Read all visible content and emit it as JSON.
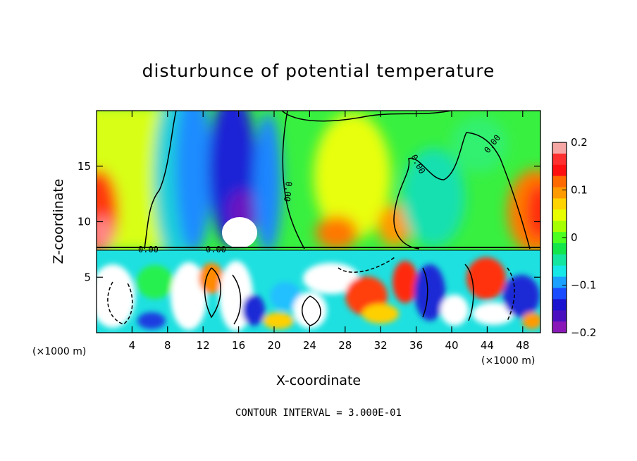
{
  "chart_data": {
    "type": "heatmap",
    "title": "disturbunce of potential temperature",
    "xlabel": "X-coordinate",
    "ylabel": "Z-coordinate",
    "x_unit": "(×1000 m)",
    "y_unit": "(×1000 m)",
    "xlim": [
      0,
      50
    ],
    "ylim": [
      0,
      20
    ],
    "x_ticks": [
      4,
      8,
      12,
      16,
      20,
      24,
      28,
      32,
      36,
      40,
      44,
      48
    ],
    "y_ticks": [
      5,
      10,
      15
    ],
    "colorbar": {
      "range": [
        -0.2,
        0.2
      ],
      "tick_values": [
        0.2,
        0.1,
        0,
        -0.1,
        -0.2
      ],
      "tick_labels": [
        "0.2",
        "0.1",
        "0",
        "−0.1",
        "−0.2"
      ],
      "colors": [
        "#f7a6a6",
        "#ff3030",
        "#ff1010",
        "#ff6a00",
        "#ff9a00",
        "#ffd400",
        "#e8ff00",
        "#a6ff00",
        "#4dff20",
        "#12e64a",
        "#14e6a0",
        "#16e8e8",
        "#1aa0ff",
        "#1a4cff",
        "#1a14d0",
        "#4a10c0",
        "#8a18b8"
      ]
    },
    "contour_labels": [
      "0.00",
      "0.00",
      "0.00",
      "0.00",
      "0.00"
    ],
    "contour_interval": "CONTOUR INTERVAL = 3.000E-01"
  }
}
